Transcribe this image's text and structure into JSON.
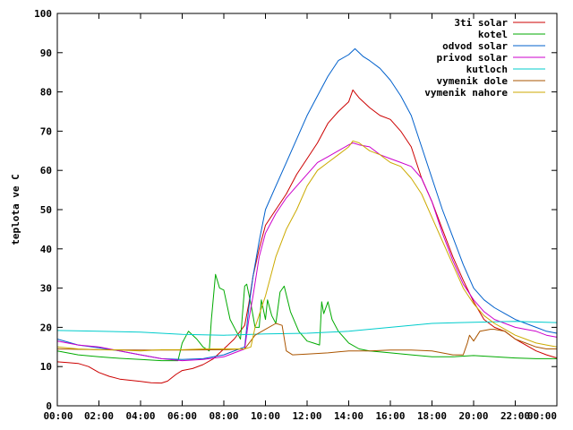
{
  "chart_data": {
    "type": "line",
    "title": "",
    "xlabel": "",
    "ylabel": "teplota ve C",
    "xlim": [
      0,
      24
    ],
    "ylim": [
      0,
      100
    ],
    "x_ticks": [
      0,
      2,
      4,
      6,
      8,
      10,
      12,
      14,
      16,
      18,
      20,
      22,
      24
    ],
    "x_tick_labels": [
      "00:00",
      "02:00",
      "04:00",
      "06:00",
      "08:00",
      "10:00",
      "12:00",
      "14:00",
      "16:00",
      "18:00",
      "20:00",
      "22:00",
      "00:00"
    ],
    "y_ticks": [
      0,
      10,
      20,
      30,
      40,
      50,
      60,
      70,
      80,
      90,
      100
    ],
    "y_tick_labels": [
      "0",
      "10",
      "20",
      "30",
      "40",
      "50",
      "60",
      "70",
      "80",
      "90",
      "100"
    ],
    "grid": false,
    "legend_position": "top-right",
    "series": [
      {
        "name": "3ti solar",
        "color": "#cc0000",
        "points": [
          [
            0,
            11.2
          ],
          [
            0.5,
            11
          ],
          [
            1,
            10.8
          ],
          [
            1.5,
            10
          ],
          [
            2,
            8.5
          ],
          [
            2.5,
            7.5
          ],
          [
            3,
            6.8
          ],
          [
            3.5,
            6.5
          ],
          [
            4,
            6.2
          ],
          [
            4.5,
            5.9
          ],
          [
            5,
            5.8
          ],
          [
            5.3,
            6.3
          ],
          [
            5.7,
            8
          ],
          [
            6,
            9
          ],
          [
            6.5,
            9.5
          ],
          [
            7,
            10.5
          ],
          [
            7.5,
            12
          ],
          [
            8,
            14.5
          ],
          [
            8.5,
            17
          ],
          [
            9,
            20.5
          ],
          [
            9.2,
            26
          ],
          [
            9.4,
            33
          ],
          [
            9.7,
            40
          ],
          [
            10,
            46
          ],
          [
            10.5,
            50
          ],
          [
            11,
            54
          ],
          [
            11.5,
            59
          ],
          [
            12,
            63
          ],
          [
            12.5,
            67
          ],
          [
            13,
            72
          ],
          [
            13.5,
            75
          ],
          [
            14,
            77.5
          ],
          [
            14.2,
            80.5
          ],
          [
            14.5,
            78.5
          ],
          [
            15,
            76
          ],
          [
            15.5,
            74
          ],
          [
            16,
            73
          ],
          [
            16.5,
            70
          ],
          [
            17,
            66
          ],
          [
            17.5,
            58
          ],
          [
            18,
            52
          ],
          [
            18.5,
            45
          ],
          [
            19,
            38
          ],
          [
            19.5,
            32
          ],
          [
            20,
            26.5
          ],
          [
            20.5,
            22
          ],
          [
            21,
            20
          ],
          [
            21.5,
            19
          ],
          [
            22,
            17
          ],
          [
            22.5,
            15.5
          ],
          [
            23,
            14
          ],
          [
            23.5,
            13
          ],
          [
            24,
            12.2
          ]
        ]
      },
      {
        "name": "kotel",
        "color": "#00aa00",
        "points": [
          [
            0,
            14
          ],
          [
            1,
            13
          ],
          [
            2,
            12.5
          ],
          [
            3,
            12.1
          ],
          [
            4,
            11.8
          ],
          [
            5,
            11.5
          ],
          [
            5.8,
            11.5
          ],
          [
            6,
            16
          ],
          [
            6.3,
            19
          ],
          [
            6.7,
            17
          ],
          [
            7,
            15
          ],
          [
            7.3,
            14
          ],
          [
            7.4,
            22
          ],
          [
            7.6,
            33.5
          ],
          [
            7.8,
            30
          ],
          [
            8,
            29.5
          ],
          [
            8.3,
            22
          ],
          [
            8.6,
            19
          ],
          [
            8.8,
            17
          ],
          [
            9,
            30.5
          ],
          [
            9.1,
            31
          ],
          [
            9.3,
            26
          ],
          [
            9.5,
            20
          ],
          [
            9.7,
            20
          ],
          [
            9.8,
            27
          ],
          [
            10,
            22
          ],
          [
            10.1,
            27
          ],
          [
            10.3,
            23
          ],
          [
            10.5,
            21
          ],
          [
            10.7,
            29
          ],
          [
            10.9,
            30.5
          ],
          [
            11.2,
            24
          ],
          [
            11.6,
            19
          ],
          [
            12,
            16.5
          ],
          [
            12.3,
            16
          ],
          [
            12.6,
            15.5
          ],
          [
            12.7,
            26.5
          ],
          [
            12.8,
            23.5
          ],
          [
            13,
            26.5
          ],
          [
            13.2,
            22
          ],
          [
            13.5,
            19
          ],
          [
            14,
            16
          ],
          [
            14.5,
            14.5
          ],
          [
            15,
            14
          ],
          [
            16,
            13.5
          ],
          [
            17,
            13
          ],
          [
            18,
            12.5
          ],
          [
            19,
            12.5
          ],
          [
            20,
            12.8
          ],
          [
            21,
            12.5
          ],
          [
            22,
            12.2
          ],
          [
            23,
            12
          ],
          [
            24,
            12
          ]
        ]
      },
      {
        "name": "odvod solar",
        "color": "#0060cc",
        "points": [
          [
            0,
            17
          ],
          [
            1,
            15.5
          ],
          [
            2,
            14.8
          ],
          [
            3,
            14
          ],
          [
            4,
            13
          ],
          [
            5,
            12
          ],
          [
            6,
            11.8
          ],
          [
            7,
            12
          ],
          [
            8,
            13
          ],
          [
            9,
            15
          ],
          [
            9.2,
            25
          ],
          [
            9.4,
            33
          ],
          [
            9.7,
            42
          ],
          [
            10,
            50
          ],
          [
            10.5,
            56
          ],
          [
            11,
            62
          ],
          [
            11.5,
            68
          ],
          [
            12,
            74
          ],
          [
            12.5,
            79
          ],
          [
            13,
            84
          ],
          [
            13.5,
            88
          ],
          [
            14,
            89.5
          ],
          [
            14.3,
            91
          ],
          [
            14.7,
            89
          ],
          [
            15,
            88
          ],
          [
            15.5,
            86
          ],
          [
            16,
            83
          ],
          [
            16.5,
            79
          ],
          [
            17,
            74
          ],
          [
            17.5,
            66
          ],
          [
            18,
            58
          ],
          [
            18.5,
            50
          ],
          [
            19,
            43
          ],
          [
            19.5,
            36
          ],
          [
            20,
            30
          ],
          [
            20.5,
            27
          ],
          [
            21,
            25
          ],
          [
            21.5,
            23.5
          ],
          [
            22,
            22
          ],
          [
            22.5,
            21
          ],
          [
            23,
            20
          ],
          [
            23.5,
            19
          ],
          [
            24,
            18.5
          ]
        ]
      },
      {
        "name": "privod solar",
        "color": "#cc00cc",
        "points": [
          [
            0,
            16.5
          ],
          [
            1,
            15.5
          ],
          [
            2,
            15
          ],
          [
            3,
            14
          ],
          [
            4,
            13
          ],
          [
            5,
            12
          ],
          [
            6,
            11.5
          ],
          [
            7,
            11.8
          ],
          [
            8,
            12.5
          ],
          [
            9,
            14.5
          ],
          [
            9.2,
            22
          ],
          [
            9.4,
            28
          ],
          [
            9.7,
            38
          ],
          [
            10,
            44
          ],
          [
            10.5,
            49
          ],
          [
            11,
            53
          ],
          [
            11.5,
            56
          ],
          [
            12,
            59
          ],
          [
            12.5,
            62
          ],
          [
            13,
            63.5
          ],
          [
            13.5,
            65
          ],
          [
            14,
            66.5
          ],
          [
            14.2,
            67
          ],
          [
            14.5,
            66.5
          ],
          [
            15,
            66
          ],
          [
            15.5,
            64
          ],
          [
            16,
            63
          ],
          [
            16.5,
            62
          ],
          [
            17,
            61
          ],
          [
            17.5,
            58
          ],
          [
            18,
            52
          ],
          [
            18.5,
            44
          ],
          [
            19,
            37
          ],
          [
            19.5,
            31
          ],
          [
            20,
            27
          ],
          [
            20.5,
            24
          ],
          [
            21,
            22
          ],
          [
            21.5,
            21
          ],
          [
            22,
            20
          ],
          [
            22.5,
            19.5
          ],
          [
            23,
            19
          ],
          [
            23.5,
            18
          ],
          [
            24,
            17.5
          ]
        ]
      },
      {
        "name": "kutloch",
        "color": "#00cccc",
        "points": [
          [
            0,
            19.2
          ],
          [
            2,
            19
          ],
          [
            4,
            18.8
          ],
          [
            6,
            18.2
          ],
          [
            8,
            18
          ],
          [
            10,
            18.3
          ],
          [
            12,
            18.5
          ],
          [
            14,
            19
          ],
          [
            16,
            20
          ],
          [
            18,
            21
          ],
          [
            20,
            21.3
          ],
          [
            22,
            21.5
          ],
          [
            24,
            21.2
          ]
        ]
      },
      {
        "name": "vymenik dole",
        "color": "#aa5500",
        "points": [
          [
            0,
            14.5
          ],
          [
            2,
            14.3
          ],
          [
            4,
            14.2
          ],
          [
            6,
            14.2
          ],
          [
            8,
            14.3
          ],
          [
            9,
            14.5
          ],
          [
            9.5,
            18
          ],
          [
            10,
            19.5
          ],
          [
            10.5,
            21
          ],
          [
            10.8,
            20.5
          ],
          [
            11,
            14
          ],
          [
            11.3,
            13
          ],
          [
            12,
            13.2
          ],
          [
            13,
            13.5
          ],
          [
            14,
            14
          ],
          [
            15,
            14
          ],
          [
            16,
            14.2
          ],
          [
            17,
            14.2
          ],
          [
            18,
            14
          ],
          [
            19,
            13
          ],
          [
            19.5,
            13
          ],
          [
            19.7,
            16
          ],
          [
            19.8,
            18
          ],
          [
            20,
            16.5
          ],
          [
            20.3,
            19
          ],
          [
            20.8,
            19.5
          ],
          [
            21,
            19.5
          ],
          [
            21.5,
            19
          ],
          [
            22,
            17
          ],
          [
            22.5,
            16
          ],
          [
            23,
            15
          ],
          [
            23.5,
            14.5
          ],
          [
            24,
            14.5
          ]
        ]
      },
      {
        "name": "vymenik nahore",
        "color": "#ccaa00",
        "points": [
          [
            0,
            15
          ],
          [
            1,
            14.5
          ],
          [
            2,
            14.3
          ],
          [
            3,
            14.2
          ],
          [
            4,
            14
          ],
          [
            5,
            14.3
          ],
          [
            6,
            14.3
          ],
          [
            7,
            14.5
          ],
          [
            8,
            14.5
          ],
          [
            9,
            14.5
          ],
          [
            9.3,
            15
          ],
          [
            9.5,
            20
          ],
          [
            10,
            28
          ],
          [
            10.5,
            38
          ],
          [
            11,
            45
          ],
          [
            11.5,
            50
          ],
          [
            12,
            56
          ],
          [
            12.5,
            60
          ],
          [
            13,
            62
          ],
          [
            13.5,
            64
          ],
          [
            14,
            66
          ],
          [
            14.2,
            67.5
          ],
          [
            14.5,
            67
          ],
          [
            15,
            65
          ],
          [
            15.5,
            64
          ],
          [
            16,
            62
          ],
          [
            16.5,
            61
          ],
          [
            17,
            58
          ],
          [
            17.5,
            54
          ],
          [
            18,
            48
          ],
          [
            18.5,
            42
          ],
          [
            19,
            36
          ],
          [
            19.5,
            30
          ],
          [
            20,
            26
          ],
          [
            20.5,
            23
          ],
          [
            21,
            21
          ],
          [
            21.5,
            19.5
          ],
          [
            22,
            18
          ],
          [
            22.5,
            17
          ],
          [
            23,
            16
          ],
          [
            23.5,
            15.5
          ],
          [
            24,
            15
          ]
        ]
      }
    ]
  }
}
